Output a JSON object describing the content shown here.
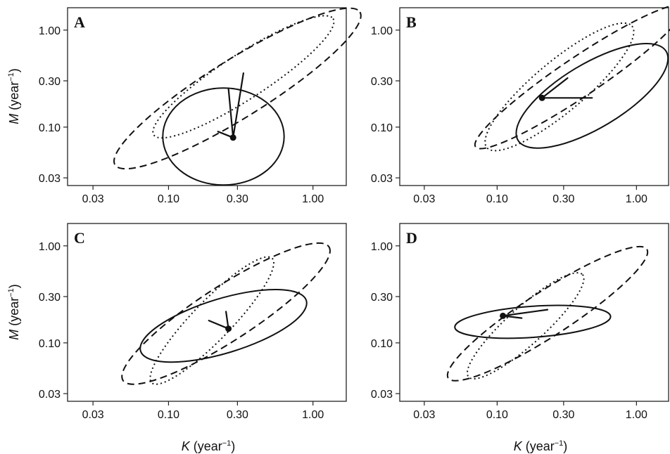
{
  "chart_data": [
    {
      "type": "scatter",
      "panel": "A",
      "xlabel_var": "K",
      "xlabel_unit_base": "(year",
      "xlabel_unit_exp": "−1",
      "xlabel_unit_close": ")",
      "ylabel_var": "M",
      "ylabel_unit_base": "(year",
      "ylabel_unit_exp": "−1",
      "ylabel_unit_close": ")",
      "x_scale": "log",
      "y_scale": "log",
      "xlim": [
        0.02,
        1.7
      ],
      "ylim": [
        0.025,
        1.7
      ],
      "xticks": [
        0.03,
        0.1,
        0.3,
        1.0
      ],
      "xtick_labels": [
        "0.03",
        "0.10",
        "0.30",
        "1.00"
      ],
      "yticks": [
        0.03,
        0.1,
        0.3,
        1.0
      ],
      "ytick_labels": [
        "0.03",
        "0.10",
        "0.30",
        "1.00"
      ],
      "point": {
        "x": 0.28,
        "y": 0.078
      },
      "segments": [
        [
          0.28,
          0.078,
          0.33,
          0.36
        ],
        [
          0.28,
          0.078,
          0.26,
          0.25
        ],
        [
          0.28,
          0.078,
          0.22,
          0.09
        ]
      ],
      "ellipses": [
        {
          "style": "solid",
          "cx": 0.24,
          "cy": 0.08,
          "rx_dec": 0.42,
          "ry_dec": 0.5,
          "angle_deg": 0
        },
        {
          "style": "dashed",
          "cx": 0.3,
          "cy": 0.25,
          "rx_dec": 1.0,
          "ry_dec": 0.3,
          "angle_deg": 32
        },
        {
          "style": "dotted",
          "cx": 0.33,
          "cy": 0.33,
          "rx_dec": 0.74,
          "ry_dec": 0.23,
          "angle_deg": 33
        }
      ]
    },
    {
      "type": "scatter",
      "panel": "B",
      "x_scale": "log",
      "y_scale": "log",
      "xlim": [
        0.02,
        1.7
      ],
      "ylim": [
        0.025,
        1.7
      ],
      "xticks": [
        0.03,
        0.1,
        0.3,
        1.0
      ],
      "xtick_labels": [
        "0.03",
        "0.10",
        "0.30",
        "1.00"
      ],
      "yticks": [
        0.03,
        0.1,
        0.3,
        1.0
      ],
      "ytick_labels": [
        "0.03",
        "0.10",
        "0.30",
        "1.00"
      ],
      "point": {
        "x": 0.21,
        "y": 0.2
      },
      "segments": [
        [
          0.21,
          0.2,
          0.32,
          0.32
        ],
        [
          0.21,
          0.2,
          0.48,
          0.2
        ]
      ],
      "ellipses": [
        {
          "style": "solid",
          "cx": 0.48,
          "cy": 0.21,
          "rx_dec": 0.62,
          "ry_dec": 0.33,
          "angle_deg": 31
        },
        {
          "style": "dashed",
          "cx": 0.39,
          "cy": 0.33,
          "rx_dec": 0.9,
          "ry_dec": 0.2,
          "angle_deg": 34
        },
        {
          "style": "dotted",
          "cx": 0.28,
          "cy": 0.26,
          "rx_dec": 0.68,
          "ry_dec": 0.26,
          "angle_deg": 40
        }
      ]
    },
    {
      "type": "scatter",
      "panel": "C",
      "x_scale": "log",
      "y_scale": "log",
      "xlim": [
        0.02,
        1.7
      ],
      "ylim": [
        0.025,
        1.7
      ],
      "xticks": [
        0.03,
        0.1,
        0.3,
        1.0
      ],
      "xtick_labels": [
        "0.03",
        "0.10",
        "0.30",
        "1.00"
      ],
      "yticks": [
        0.03,
        0.1,
        0.3,
        1.0
      ],
      "ytick_labels": [
        "0.03",
        "0.10",
        "0.30",
        "1.00"
      ],
      "point": {
        "x": 0.26,
        "y": 0.14
      },
      "segments": [
        [
          0.26,
          0.14,
          0.25,
          0.21
        ],
        [
          0.26,
          0.14,
          0.19,
          0.17
        ]
      ],
      "ellipses": [
        {
          "style": "solid",
          "cx": 0.24,
          "cy": 0.15,
          "rx_dec": 0.6,
          "ry_dec": 0.28,
          "angle_deg": 17
        },
        {
          "style": "dashed",
          "cx": 0.25,
          "cy": 0.2,
          "rx_dec": 0.85,
          "ry_dec": 0.28,
          "angle_deg": 33
        },
        {
          "style": "dotted",
          "cx": 0.2,
          "cy": 0.17,
          "rx_dec": 0.6,
          "ry_dec": 0.2,
          "angle_deg": 46
        }
      ]
    },
    {
      "type": "scatter",
      "panel": "D",
      "x_scale": "log",
      "y_scale": "log",
      "xlim": [
        0.02,
        1.7
      ],
      "ylim": [
        0.025,
        1.7
      ],
      "xticks": [
        0.03,
        0.1,
        0.3,
        1.0
      ],
      "xtick_labels": [
        "0.03",
        "0.10",
        "0.30",
        "1.00"
      ],
      "yticks": [
        0.03,
        0.1,
        0.3,
        1.0
      ],
      "ytick_labels": [
        "0.03",
        "0.10",
        "0.30",
        "1.00"
      ],
      "point": {
        "x": 0.11,
        "y": 0.19
      },
      "segments": [
        [
          0.11,
          0.19,
          0.23,
          0.22
        ],
        [
          0.11,
          0.19,
          0.15,
          0.18
        ]
      ],
      "ellipses": [
        {
          "style": "solid",
          "cx": 0.18,
          "cy": 0.165,
          "rx_dec": 0.56,
          "ry_dec": 0.16,
          "angle_deg": 4
        },
        {
          "style": "dashed",
          "cx": 0.23,
          "cy": 0.2,
          "rx_dec": 0.85,
          "ry_dec": 0.23,
          "angle_deg": 33
        },
        {
          "style": "dotted",
          "cx": 0.16,
          "cy": 0.15,
          "rx_dec": 0.55,
          "ry_dec": 0.19,
          "angle_deg": 42
        }
      ]
    }
  ]
}
